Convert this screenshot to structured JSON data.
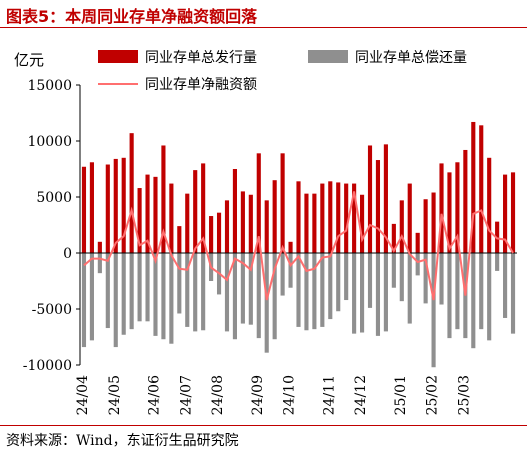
{
  "title": "图表5：本周同业存单净融资额回落",
  "source": "资料来源：Wind，东证衍生品研究院",
  "chart_data": {
    "type": "bar",
    "ylabel": "亿元",
    "ylim": [
      -10000,
      15000
    ],
    "yticks": [
      15000,
      10000,
      5000,
      0,
      -5000,
      -10000
    ],
    "xtick_labels": [
      "24/04",
      "24/05",
      "24/06",
      "24/07",
      "24/08",
      "24/09",
      "24/10",
      "24/11",
      "24/12",
      "25/01",
      "25/02",
      "25/03"
    ],
    "xtick_index": [
      0,
      4,
      9,
      13,
      17,
      22,
      26,
      31,
      35,
      40,
      44,
      48
    ],
    "legend_position": "top",
    "series": [
      {
        "name": "同业存单总发行量",
        "type": "bar",
        "color": "#c00000",
        "values": [
          7700,
          8100,
          1000,
          7900,
          8400,
          8500,
          10700,
          5800,
          7000,
          6800,
          9600,
          6200,
          2400,
          5300,
          7400,
          8000,
          3300,
          3600,
          4700,
          7500,
          5500,
          5200,
          8900,
          4700,
          6500,
          8900,
          1000,
          6400,
          5300,
          5300,
          6200,
          6400,
          6300,
          6200,
          6200,
          5200,
          9600,
          8300,
          9700,
          2600,
          4700,
          6200,
          1800,
          4800,
          5400,
          8000,
          7200,
          8100,
          9200,
          11700,
          11400,
          8500,
          2800,
          7000,
          7200
        ]
      },
      {
        "name": "同业存单总偿还量",
        "type": "bar",
        "color": "#8f8f8f",
        "values": [
          -8400,
          -7800,
          -1800,
          -6700,
          -8400,
          -7300,
          -6800,
          -6100,
          -6100,
          -7400,
          -7700,
          -8100,
          -5400,
          -6600,
          -7000,
          -6900,
          -2500,
          -3700,
          -7000,
          -7700,
          -6300,
          -6400,
          -7600,
          -8900,
          -7700,
          -3800,
          -3100,
          -6600,
          -6900,
          -6800,
          -6600,
          -5900,
          -5200,
          -4200,
          -7200,
          -7100,
          -4900,
          -7400,
          -7000,
          -3100,
          -4300,
          -6300,
          -2000,
          -4500,
          -10200,
          -4600,
          -7600,
          -6800,
          -7600,
          -8500,
          -6800,
          -7800,
          -1600,
          -5800,
          -7200
        ]
      },
      {
        "name": "同业存单净融资额",
        "type": "line",
        "color": "#ff6f6f",
        "values": [
          -1100,
          -500,
          -500,
          -700,
          900,
          1500,
          3800,
          700,
          1100,
          -700,
          1900,
          -200,
          -1400,
          -1500,
          400,
          1300,
          -1300,
          -1800,
          -2400,
          -500,
          -900,
          -1500,
          1500,
          -4200,
          -1400,
          500,
          -1100,
          -300,
          -1600,
          -1400,
          -400,
          -300,
          1500,
          2000,
          5500,
          1200,
          2500,
          2200,
          1400,
          200,
          1500,
          -100,
          -800,
          -600,
          -4200,
          3500,
          400,
          1500,
          -3800,
          3500,
          3800,
          2000,
          1300,
          1200,
          0
        ]
      }
    ]
  }
}
